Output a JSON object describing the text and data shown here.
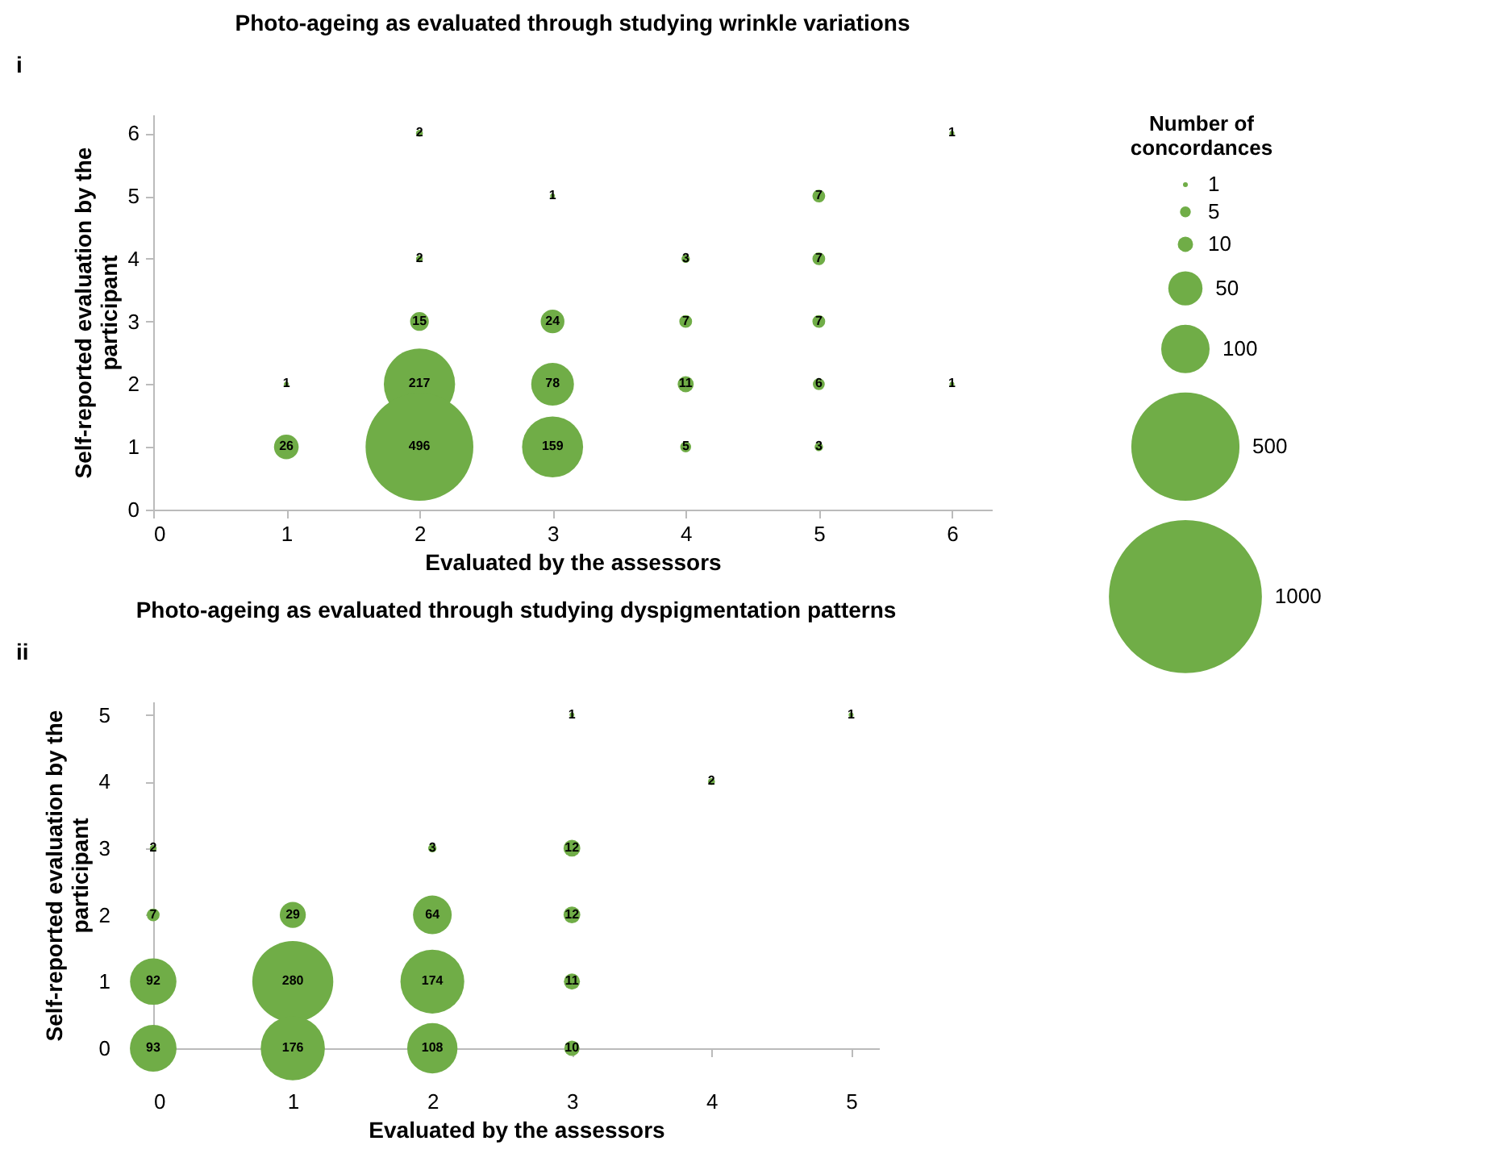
{
  "chart_data": [
    {
      "type": "bubble",
      "title": "Photo-ageing as evaluated through studying wrinkle variations",
      "annotations": [
        "i"
      ],
      "xlabel": "Evaluated by the assessors",
      "ylabel": "Self-reported evaluation by the participant",
      "legend_title": "Number of concordances",
      "size_legend": [
        1,
        5,
        10,
        50,
        100,
        500,
        1000
      ],
      "xlim": [
        0,
        6.3
      ],
      "xticks": [
        0,
        1,
        2,
        3,
        4,
        5,
        6
      ],
      "ylim": [
        0,
        6.3
      ],
      "yticks": [
        0,
        1,
        2,
        3,
        4,
        5,
        6
      ],
      "series": [
        {
          "color": "#70ad47",
          "x": [
            1,
            1,
            2,
            2,
            2,
            2,
            2,
            3,
            3,
            3,
            3,
            4,
            4,
            4,
            4,
            5,
            5,
            5,
            5,
            5,
            6,
            6
          ],
          "values": [
            2,
            1,
            6,
            4,
            3,
            2,
            1,
            5,
            3,
            2,
            1,
            4,
            3,
            2,
            1,
            5,
            4,
            3,
            2,
            1,
            6,
            2
          ],
          "sizes": [
            1,
            26,
            2,
            2,
            15,
            217,
            496,
            1,
            24,
            78,
            159,
            3,
            7,
            11,
            5,
            7,
            7,
            7,
            6,
            3,
            1,
            1
          ],
          "value_labels": [
            "1",
            "26",
            "2",
            "2",
            "15",
            "217",
            "496",
            "1",
            "24",
            "78",
            "159",
            "3",
            "7",
            "11",
            "5",
            "7",
            "7",
            "7",
            "6",
            "3",
            "1",
            "1"
          ]
        }
      ]
    },
    {
      "type": "bubble",
      "title": "Photo-ageing as evaluated through studying dyspigmentation patterns",
      "annotations": [
        "ii"
      ],
      "xlabel": "Evaluated by the assessors",
      "ylabel": "Self-reported evaluation by the participant",
      "xlim": [
        0,
        5.2
      ],
      "xticks": [
        0,
        1,
        2,
        3,
        4,
        5
      ],
      "ylim": [
        0,
        5.2
      ],
      "yticks": [
        0,
        1,
        2,
        3,
        4,
        5
      ],
      "series": [
        {
          "color": "#70ad47",
          "x": [
            0,
            0,
            0,
            0,
            1,
            1,
            1,
            2,
            2,
            2,
            2,
            3,
            3,
            3,
            3,
            3,
            4,
            5
          ],
          "values": [
            3,
            2,
            1,
            0,
            2,
            1,
            0,
            3,
            2,
            1,
            0,
            5,
            3,
            2,
            1,
            0,
            4,
            5
          ],
          "sizes": [
            2,
            7,
            92,
            93,
            29,
            280,
            176,
            3,
            64,
            174,
            108,
            1,
            12,
            12,
            11,
            10,
            2,
            1
          ],
          "value_labels": [
            "2",
            "7",
            "92",
            "93",
            "29",
            "280",
            "176",
            "3",
            "64",
            "174",
            "108",
            "1",
            "12",
            "12",
            "11",
            "10",
            "2",
            "1"
          ]
        }
      ]
    }
  ]
}
